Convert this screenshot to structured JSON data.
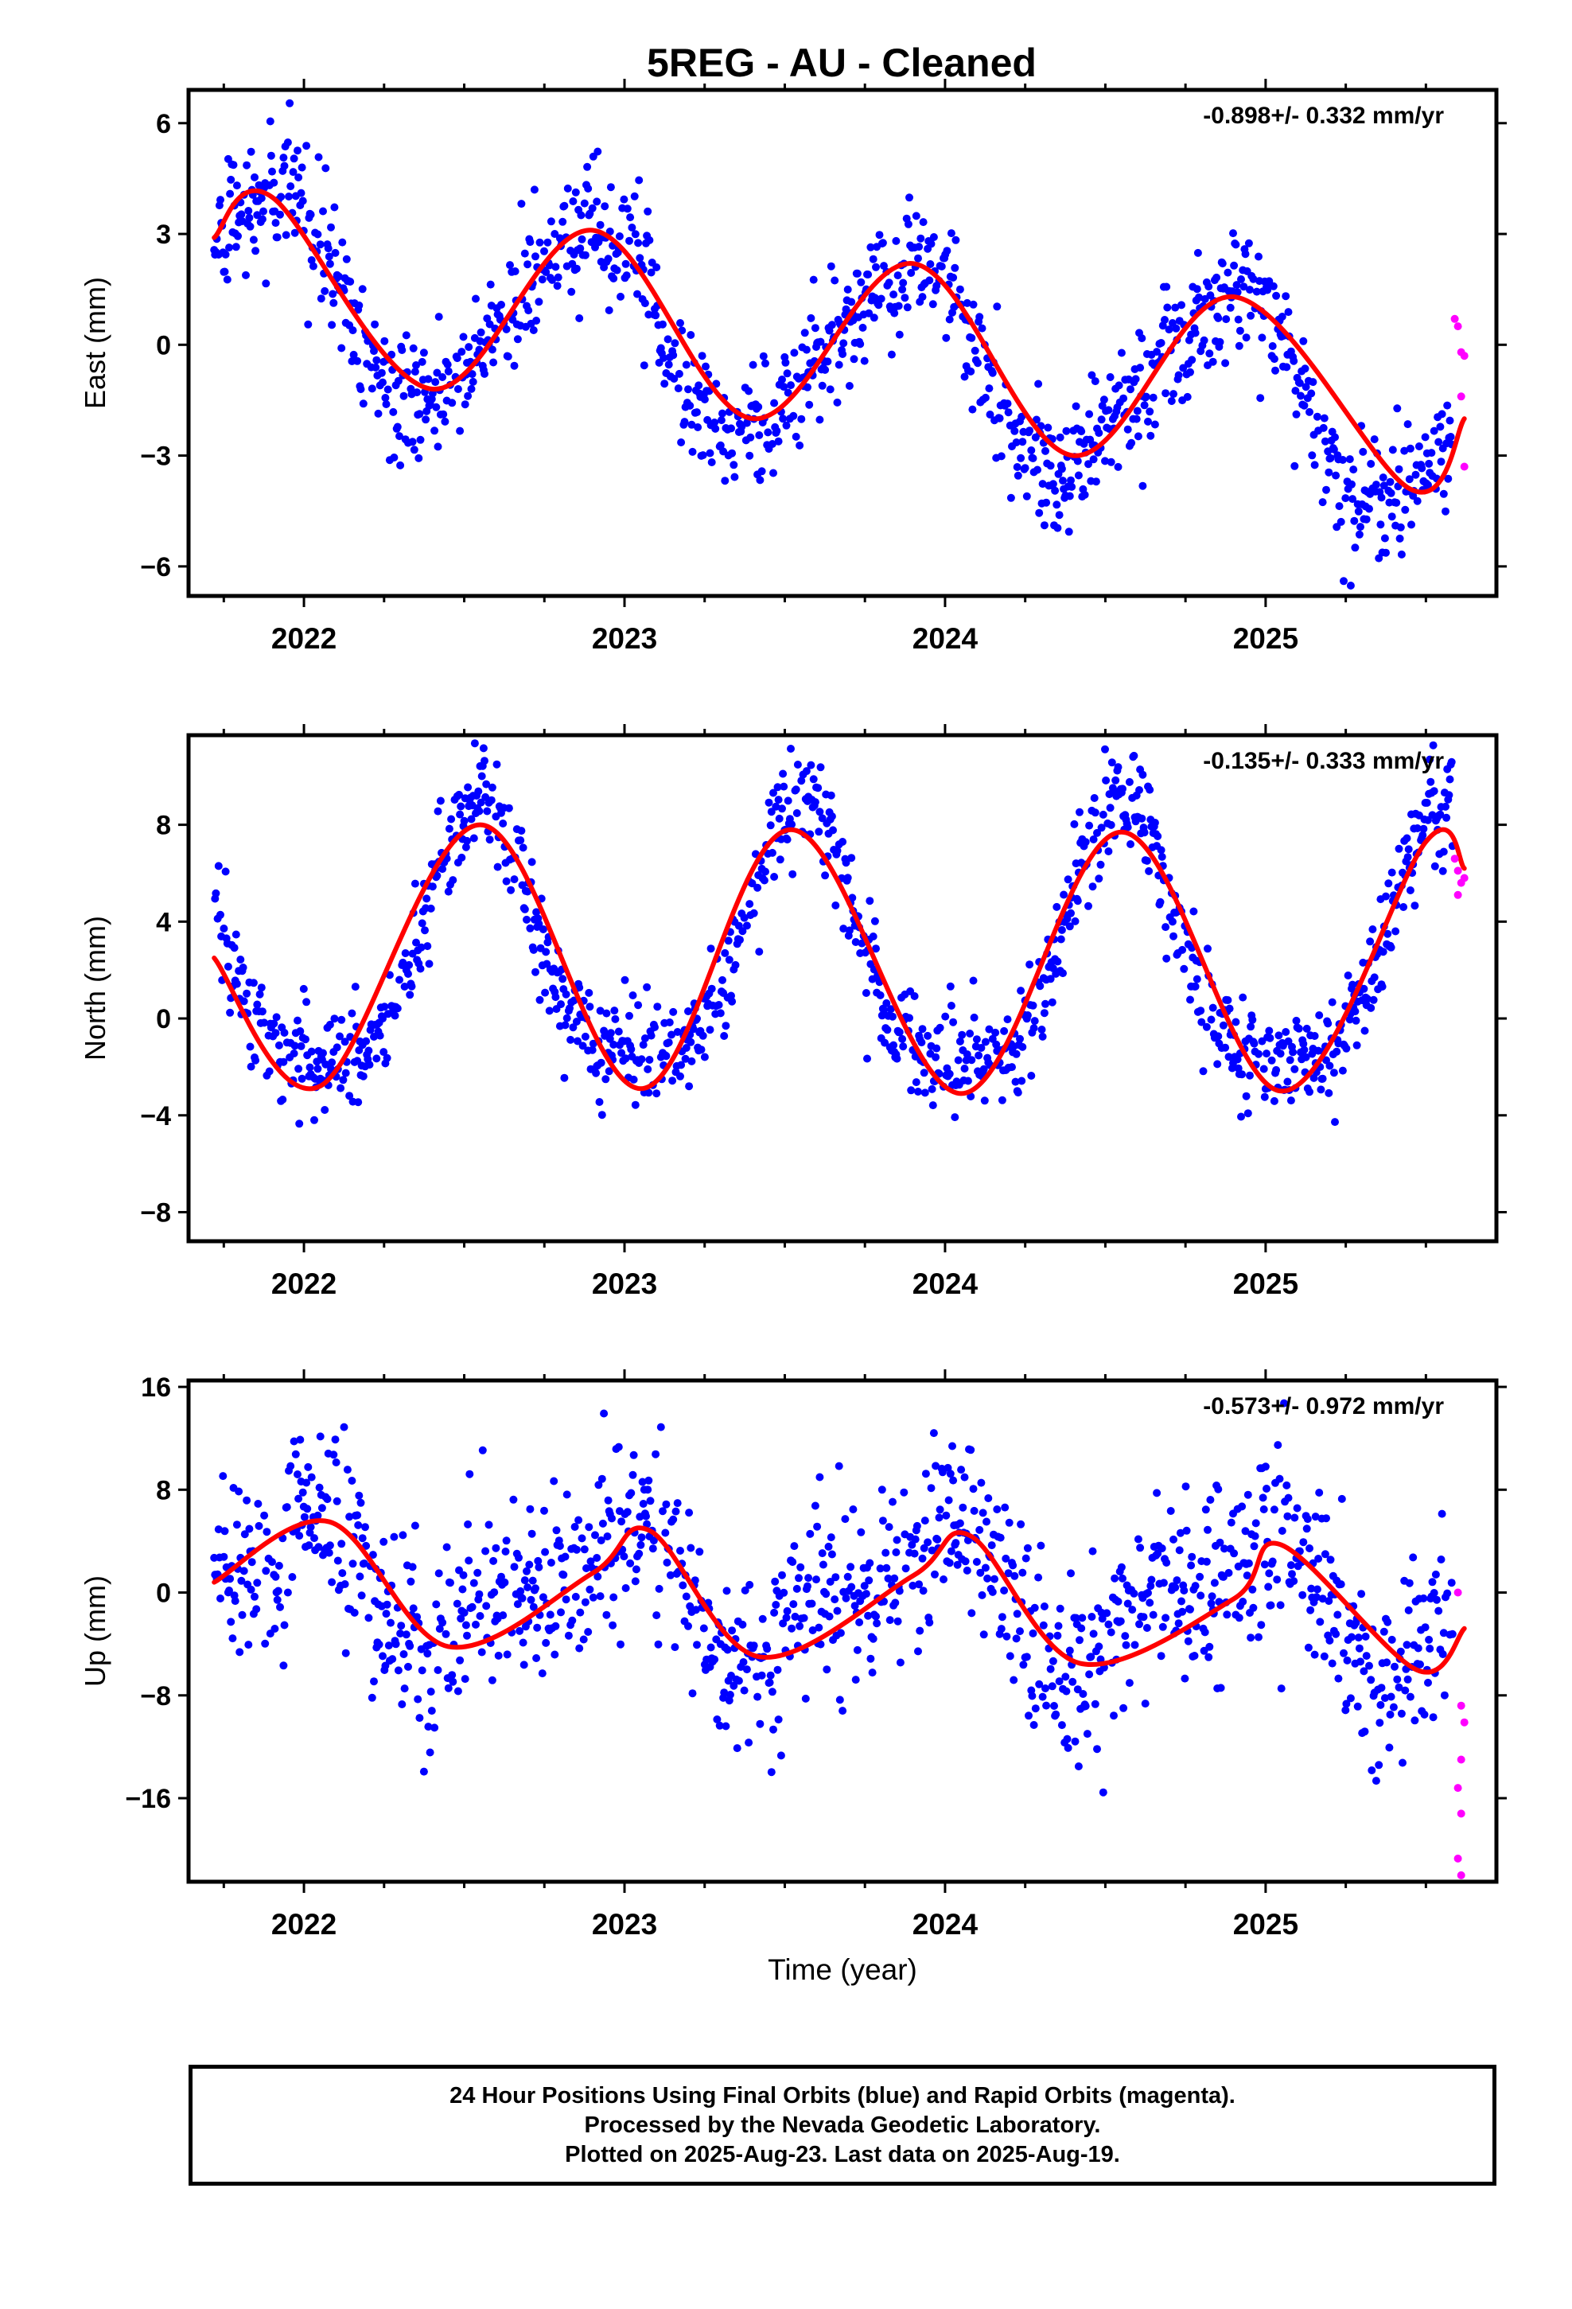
{
  "title": "5REG  - AU - Cleaned",
  "footer": {
    "line1": "24 Hour Positions Using Final Orbits (blue) and Rapid Orbits (magenta).",
    "line2": "Processed by the Nevada Geodetic Laboratory.",
    "line3": "Plotted on 2025-Aug-23. Last data on 2025-Aug-19."
  },
  "colors": {
    "final_orbits": "#0000ff",
    "rapid_orbits": "#ff00ff",
    "model_fit": "#ff0000",
    "frame": "#000000"
  },
  "chart_data": [
    {
      "type": "scatter",
      "ylabel": "East (mm)",
      "xlabel": "",
      "annotation": "-0.898+/- 0.332 mm/yr",
      "xlim": [
        2021.64,
        2025.72
      ],
      "ylim": [
        -6.8,
        6.9
      ],
      "yticks": [
        6,
        3,
        0,
        -3,
        -6
      ],
      "xticks": [
        2022,
        2023,
        2024,
        2025
      ],
      "grid": false,
      "fit": {
        "mean": 0.0,
        "trend": -0.898,
        "ann_amp": 2.6,
        "ann_phase_year": 2022.88,
        "semi_amp": 0.45,
        "semi_phase_year": 2022.0,
        "noise": 0.85
      },
      "fit_curve": {
        "x": [
          2021.72,
          2021.9,
          2022.4,
          2022.9,
          2023.4,
          2023.9,
          2024.4,
          2024.9,
          2025.45,
          2025.62
        ],
        "y": [
          2.9,
          4.0,
          -1.2,
          3.1,
          -2.0,
          2.2,
          -3.0,
          1.3,
          -3.9,
          -2.0
        ]
      },
      "rapid_points": {
        "x": [
          2025.59,
          2025.6,
          2025.61,
          2025.62,
          2025.61,
          2025.62
        ],
        "y": [
          0.7,
          0.5,
          -0.2,
          -0.3,
          -1.4,
          -3.3
        ]
      }
    },
    {
      "type": "scatter",
      "ylabel": "North (mm)",
      "xlabel": "",
      "annotation": "-0.135+/- 0.333 mm/yr",
      "xlim": [
        2021.64,
        2025.72
      ],
      "ylim": [
        -9.2,
        11.7
      ],
      "yticks": [
        8,
        4,
        0,
        -4,
        -8
      ],
      "xticks": [
        2022,
        2023,
        2024,
        2025
      ],
      "grid": false,
      "fit": {
        "mean": 2.4,
        "trend": -0.135,
        "ann_amp": 5.3,
        "ann_phase_year": 2022.55,
        "semi_amp": 1.4,
        "semi_phase_year": 2022.05,
        "noise": 1.1
      },
      "fit_curve": {
        "x": [
          2021.72,
          2022.05,
          2022.55,
          2023.05,
          2023.52,
          2024.05,
          2024.55,
          2025.05,
          2025.5,
          2025.62
        ],
        "y": [
          2.5,
          -2.8,
          8.0,
          -2.9,
          7.8,
          -3.1,
          7.7,
          -3.0,
          7.3,
          6.2
        ]
      },
      "rapid_points": {
        "x": [
          2025.59,
          2025.6,
          2025.61,
          2025.62,
          2025.6
        ],
        "y": [
          6.6,
          6.1,
          5.6,
          5.8,
          5.1
        ]
      }
    },
    {
      "type": "scatter",
      "ylabel": "Up (mm)",
      "xlabel": "Time (year)",
      "annotation": "-0.573+/- 0.972 mm/yr",
      "xlim": [
        2021.64,
        2025.72
      ],
      "ylim": [
        -22.5,
        16.5
      ],
      "yticks": [
        16,
        8,
        0,
        -8,
        -16
      ],
      "ytick_labels": [
        "16",
        "8",
        "0",
        "−8",
        "−16"
      ],
      "xticks": [
        2022,
        2023,
        2024,
        2025
      ],
      "grid": false,
      "fit": {
        "mean": 0.0,
        "trend": -0.573,
        "ann_amp": 4.0,
        "ann_phase_year": 2022.95,
        "semi_amp": 2.2,
        "semi_phase_year": 2022.08,
        "noise": 3.7
      },
      "fit_curve": {
        "x": [
          2021.72,
          2022.08,
          2022.45,
          2022.9,
          2023.08,
          2023.42,
          2023.9,
          2024.08,
          2024.42,
          2024.9,
          2025.05,
          2025.47,
          2025.62
        ],
        "y": [
          0.8,
          5.5,
          -4.2,
          1.5,
          4.8,
          -5.0,
          1.3,
          4.4,
          -5.5,
          -0.5,
          3.7,
          -6.0,
          -2.8
        ]
      },
      "rapid_points": {
        "x": [
          2025.6,
          2025.61,
          2025.62,
          2025.61,
          2025.6,
          2025.61,
          2025.6,
          2025.61
        ],
        "y": [
          0.0,
          -8.8,
          -10.1,
          -13.0,
          -15.2,
          -17.2,
          -20.7,
          -22.0
        ]
      }
    }
  ]
}
